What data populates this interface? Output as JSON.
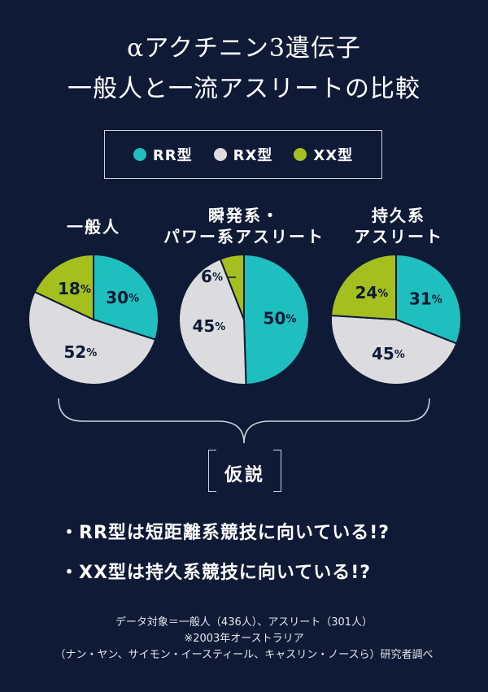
{
  "title": {
    "line1": "αアクチニン3遺伝子",
    "line2": "一般人と一流アスリートの比較"
  },
  "legend": [
    {
      "label": "RR型",
      "color": "#1fbfbf"
    },
    {
      "label": "RX型",
      "color": "#dcdcde"
    },
    {
      "label": "XX型",
      "color": "#a5bf1f"
    }
  ],
  "groups": {
    "general": {
      "line1": "一般人",
      "line2": ""
    },
    "sprint": {
      "line1": "瞬発系・",
      "line2": "パワー系アスリート"
    },
    "endurance": {
      "line1": "持久系",
      "line2": "アスリート"
    }
  },
  "chart_data": [
    {
      "type": "pie",
      "title": "一般人",
      "labels": [
        "RR型",
        "RX型",
        "XX型"
      ],
      "values": [
        30,
        52,
        18
      ],
      "display": [
        "30%",
        "52%",
        "18%"
      ]
    },
    {
      "type": "pie",
      "title": "瞬発系・パワー系アスリート",
      "labels": [
        "RR型",
        "RX型",
        "XX型"
      ],
      "values": [
        50,
        45,
        6
      ],
      "display": [
        "50%",
        "45%",
        "6%"
      ]
    },
    {
      "type": "pie",
      "title": "持久系アスリート",
      "labels": [
        "RR型",
        "RX型",
        "XX型"
      ],
      "values": [
        31,
        45,
        24
      ],
      "display": [
        "31%",
        "45%",
        "24%"
      ]
    }
  ],
  "hypothesis": {
    "label": "仮説",
    "line1": "・RR型は短距離系競技に向いている!?",
    "line2": "・XX型は持久系競技に向いている!?"
  },
  "notes": {
    "line1": "データ対象＝一般人（436人）、アスリート（301人）",
    "line2": "※2003年オーストラリア",
    "line3": "（ナン・ヤン、サイモン・イースティール、キャスリン・ノースら）研究者調べ"
  }
}
